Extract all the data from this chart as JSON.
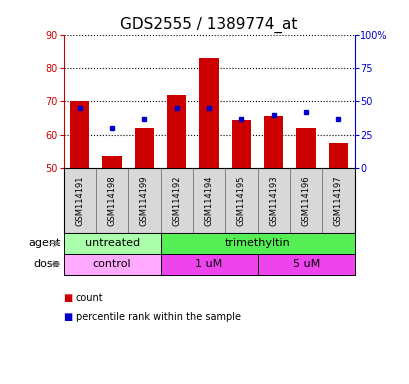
{
  "title": "GDS2555 / 1389774_at",
  "samples": [
    "GSM114191",
    "GSM114198",
    "GSM114199",
    "GSM114192",
    "GSM114194",
    "GSM114195",
    "GSM114193",
    "GSM114196",
    "GSM114197"
  ],
  "bar_bottom": 50,
  "bar_tops": [
    70.0,
    53.5,
    62.0,
    72.0,
    83.0,
    64.5,
    65.5,
    62.0,
    57.5
  ],
  "percentile_values_pct": [
    45,
    30,
    37,
    45,
    45,
    37,
    40,
    42,
    37
  ],
  "ylim": [
    50,
    90
  ],
  "yticks_left": [
    50,
    60,
    70,
    80,
    90
  ],
  "yticks_right": [
    0,
    25,
    50,
    75,
    100
  ],
  "bar_color": "#cc0000",
  "dot_color": "#0000cc",
  "agent_groups": [
    {
      "label": "untreated",
      "start": 0,
      "end": 3,
      "color": "#aaffaa"
    },
    {
      "label": "trimethyltin",
      "start": 3,
      "end": 9,
      "color": "#55ee55"
    }
  ],
  "dose_groups": [
    {
      "label": "control",
      "start": 0,
      "end": 3,
      "color": "#ffaaff"
    },
    {
      "label": "1 uM",
      "start": 3,
      "end": 6,
      "color": "#ee44ee"
    },
    {
      "label": "5 uM",
      "start": 6,
      "end": 9,
      "color": "#ee44ee"
    }
  ],
  "legend_count_label": "count",
  "legend_pct_label": "percentile rank within the sample",
  "agent_label": "agent",
  "dose_label": "dose",
  "title_fontsize": 11,
  "tick_fontsize": 7,
  "label_fontsize": 8,
  "group_label_fontsize": 8,
  "sample_fontsize": 6
}
